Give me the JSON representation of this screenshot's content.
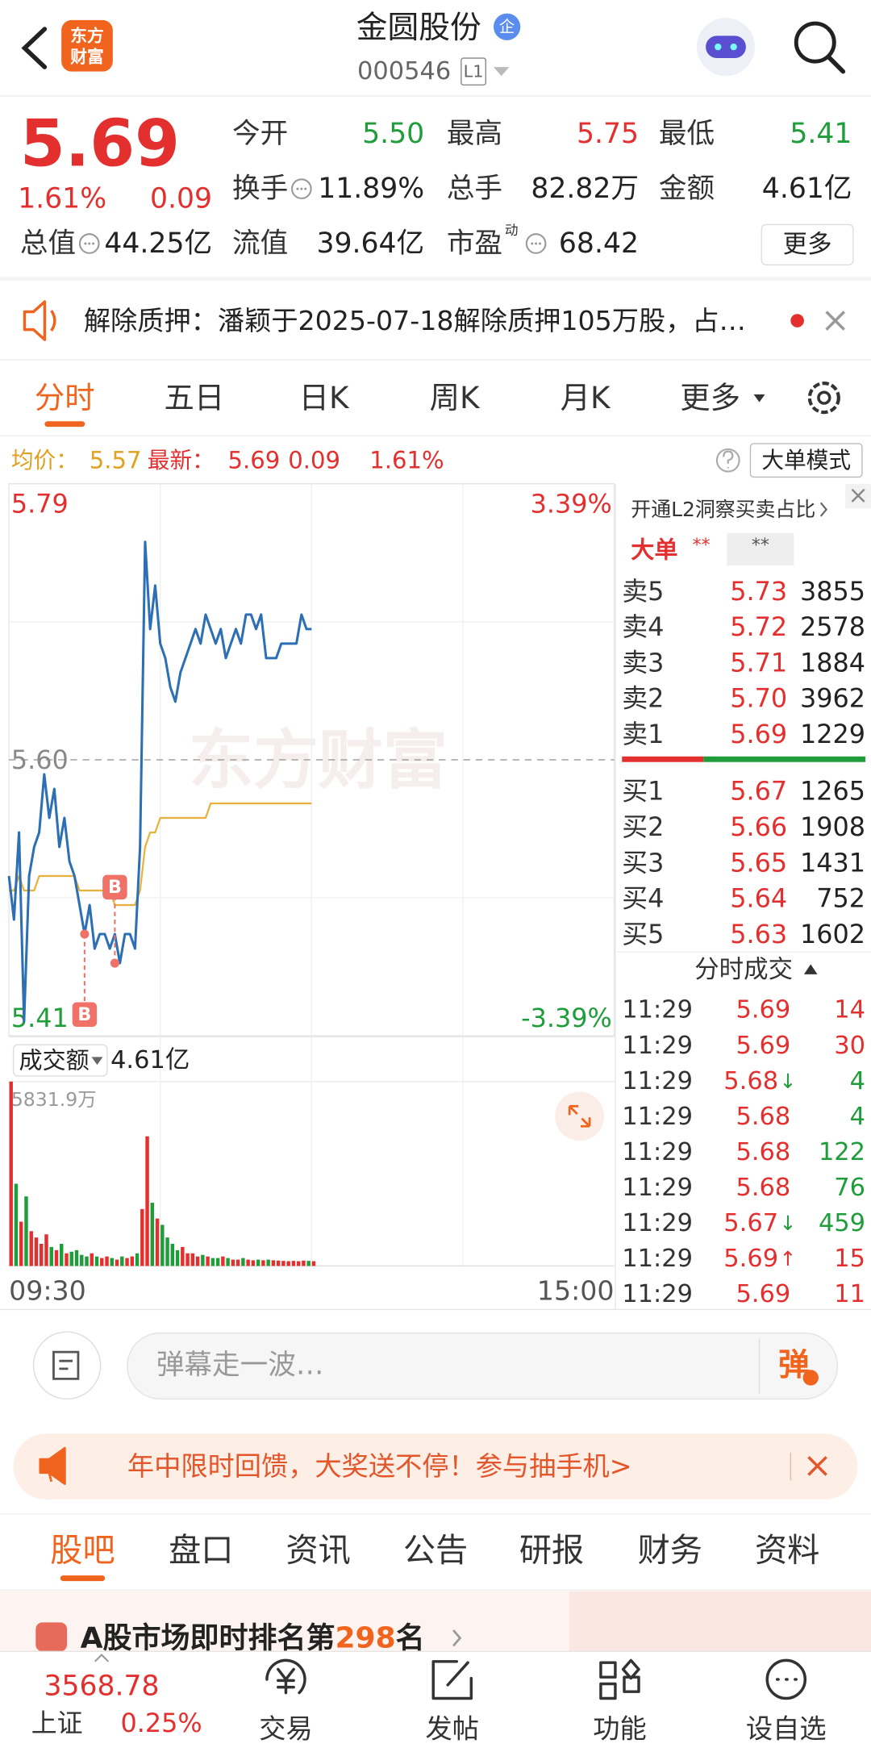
{
  "header": {
    "logo": [
      "东方",
      "财富"
    ],
    "name": "金圆股份",
    "badge": "企",
    "code": "000546",
    "level": "L1"
  },
  "quote": {
    "price": "5.69",
    "change_pct": "1.61%",
    "change": "0.09",
    "fields": [
      {
        "label": "今开",
        "value": "5.50",
        "color": "#1f9d3a"
      },
      {
        "label": "最高",
        "value": "5.75",
        "color": "#e3302f"
      },
      {
        "label": "最低",
        "value": "5.41",
        "color": "#1f9d3a"
      },
      {
        "label": "换手",
        "value": "11.89%",
        "color": "#222222"
      },
      {
        "label": "总手",
        "value": "82.82万",
        "color": "#222222"
      },
      {
        "label": "金额",
        "value": "4.61亿",
        "color": "#222222"
      },
      {
        "label": "总值",
        "value": "44.25亿",
        "color": "#222222"
      },
      {
        "label": "流值",
        "value": "39.64亿",
        "color": "#222222"
      },
      {
        "label": "市盈",
        "superscript": "动",
        "value": "68.42",
        "color": "#222222"
      }
    ],
    "more": "更多"
  },
  "notice": "解除质押：潘颖于2025-07-18解除质押105万股，占…",
  "tabs": {
    "items": [
      "分时",
      "五日",
      "日K",
      "周K",
      "月K",
      "更多"
    ],
    "active": 0
  },
  "info_bar": {
    "avg_label": "均价：",
    "avg": "5.57",
    "latest_label": "最新：",
    "latest": "5.69",
    "change": "0.09",
    "change_pct": "1.61%",
    "mode": "大单模式"
  },
  "chart_data": [
    {
      "type": "line",
      "watermark": "东方财富",
      "grid": true,
      "x": [
        0,
        2,
        4,
        6,
        8,
        10,
        12,
        14,
        16,
        18,
        20,
        22,
        24,
        26,
        28,
        30,
        32,
        34,
        36,
        38,
        40,
        42,
        44,
        46,
        48,
        50,
        52,
        54,
        56,
        58,
        60,
        62,
        64,
        66,
        68,
        70,
        72,
        74,
        76,
        78,
        80,
        82,
        84,
        86,
        88,
        90,
        92,
        94,
        96,
        98,
        100,
        102,
        104,
        106,
        108,
        110,
        112,
        114,
        116,
        118,
        120
      ],
      "xlim": [
        0,
        240
      ],
      "xticks": [
        {
          "value": 0,
          "label": "09:30"
        },
        {
          "value": 240,
          "label": "15:00"
        }
      ],
      "ylim": [
        5.41,
        5.79
      ],
      "yticks": [
        5.79,
        {
          "value": 5.6,
          "label": "5.60"
        },
        5.41
      ],
      "y2lim": [
        -3.39,
        3.39
      ],
      "y2ticks": [
        {
          "value": 3.39,
          "label": "3.39%"
        },
        {
          "value": -3.39,
          "label": "-3.39%"
        }
      ],
      "up_color": "#e3302f",
      "down_color": "#1f9d3a",
      "series": [
        {
          "color": "#2c6fb5",
          "values": [
            5.52,
            5.49,
            5.55,
            5.42,
            5.52,
            5.54,
            5.55,
            5.59,
            5.56,
            5.58,
            5.54,
            5.56,
            5.53,
            5.52,
            5.5,
            5.48,
            5.5,
            5.47,
            5.48,
            5.48,
            5.47,
            5.48,
            5.46,
            5.48,
            5.48,
            5.47,
            5.54,
            5.75,
            5.69,
            5.72,
            5.68,
            5.67,
            5.65,
            5.64,
            5.66,
            5.67,
            5.68,
            5.69,
            5.68,
            5.7,
            5.69,
            5.68,
            5.69,
            5.67,
            5.68,
            5.69,
            5.68,
            5.7,
            5.7,
            5.69,
            5.7,
            5.67,
            5.67,
            5.67,
            5.68,
            5.68,
            5.68,
            5.68,
            5.7,
            5.69,
            5.69
          ]
        },
        {
          "color": "#e8b13b",
          "values": [
            5.51,
            5.51,
            5.52,
            5.51,
            5.51,
            5.51,
            5.52,
            5.52,
            5.52,
            5.52,
            5.52,
            5.52,
            5.52,
            5.52,
            5.51,
            5.51,
            5.51,
            5.51,
            5.51,
            5.51,
            5.51,
            5.5,
            5.5,
            5.5,
            5.5,
            5.5,
            5.51,
            5.54,
            5.55,
            5.55,
            5.56,
            5.56,
            5.56,
            5.56,
            5.56,
            5.56,
            5.56,
            5.56,
            5.56,
            5.56,
            5.57,
            5.57,
            5.57,
            5.57,
            5.57,
            5.57,
            5.57,
            5.57,
            5.57,
            5.57,
            5.57,
            5.57,
            5.57,
            5.57,
            5.57,
            5.57,
            5.57,
            5.57,
            5.57,
            5.57,
            5.57
          ]
        }
      ],
      "markers": [
        {
          "label": "B",
          "x": 30,
          "y": 5.48
        },
        {
          "label": "B",
          "x": 42,
          "y": 5.46
        }
      ]
    },
    {
      "type": "bar",
      "label": "成交额",
      "total": "4.61亿",
      "x": [
        0,
        2,
        4,
        6,
        8,
        10,
        12,
        14,
        16,
        18,
        20,
        22,
        24,
        26,
        28,
        30,
        32,
        34,
        36,
        38,
        40,
        42,
        44,
        46,
        48,
        50,
        52,
        54,
        56,
        58,
        60,
        62,
        64,
        66,
        68,
        70,
        72,
        74,
        76,
        78,
        80,
        82,
        84,
        86,
        88,
        90,
        92,
        94,
        96,
        98,
        100,
        102,
        104,
        106,
        108,
        110,
        112,
        114,
        116,
        118,
        120
      ],
      "xlim": [
        0,
        240
      ],
      "ylim": [
        0,
        5831.9
      ],
      "yticks": [
        {
          "value": 5831.9,
          "label": "5831.9万"
        }
      ],
      "values": [
        5831.9,
        2600,
        1400,
        2200,
        1100,
        900,
        700,
        1000,
        600,
        500,
        700,
        400,
        450,
        500,
        350,
        300,
        400,
        300,
        250,
        300,
        250,
        200,
        300,
        250,
        300,
        400,
        1800,
        4100,
        2000,
        1500,
        1300,
        900,
        700,
        500,
        600,
        400,
        400,
        300,
        350,
        300,
        250,
        250,
        300,
        250,
        200,
        200,
        250,
        200,
        180,
        200,
        180,
        200,
        180,
        170,
        160,
        150,
        160,
        150,
        170,
        160,
        150
      ]
    }
  ],
  "order_book": {
    "promo": "开通L2洞察买卖占比",
    "big_order": {
      "label": "大单",
      "values": [
        "**",
        "**"
      ]
    },
    "asks": [
      {
        "label": "卖5",
        "price": "5.73",
        "volume": "3855"
      },
      {
        "label": "卖4",
        "price": "5.72",
        "volume": "2578"
      },
      {
        "label": "卖3",
        "price": "5.71",
        "volume": "1884"
      },
      {
        "label": "卖2",
        "price": "5.70",
        "volume": "3962"
      },
      {
        "label": "卖1",
        "price": "5.69",
        "volume": "1229"
      }
    ],
    "bids": [
      {
        "label": "买1",
        "price": "5.67",
        "volume": "1265"
      },
      {
        "label": "买2",
        "price": "5.66",
        "volume": "1908"
      },
      {
        "label": "买3",
        "price": "5.65",
        "volume": "1431"
      },
      {
        "label": "买4",
        "price": "5.64",
        "volume": "752"
      },
      {
        "label": "买5",
        "price": "5.63",
        "volume": "1602"
      }
    ]
  },
  "trades": {
    "title": "分时成交",
    "rows": [
      {
        "time": "11:29",
        "price": "5.69",
        "volume": "14",
        "color": "#e3302f"
      },
      {
        "time": "11:29",
        "price": "5.69",
        "volume": "30",
        "color": "#e3302f"
      },
      {
        "time": "11:29",
        "price": "5.68",
        "arrow": "↓",
        "arrow_color": "#1f9d3a",
        "volume": "4",
        "color": "#1f9d3a"
      },
      {
        "time": "11:29",
        "price": "5.68",
        "volume": "4",
        "color": "#1f9d3a"
      },
      {
        "time": "11:29",
        "price": "5.68",
        "volume": "122",
        "color": "#1f9d3a"
      },
      {
        "time": "11:29",
        "price": "5.68",
        "volume": "76",
        "color": "#1f9d3a"
      },
      {
        "time": "11:29",
        "price": "5.67",
        "arrow": "↓",
        "arrow_color": "#1f9d3a",
        "volume": "459",
        "color": "#1f9d3a"
      },
      {
        "time": "11:29",
        "price": "5.69",
        "arrow": "↑",
        "arrow_color": "#e3302f",
        "volume": "15",
        "color": "#e3302f"
      },
      {
        "time": "11:29",
        "price": "5.69",
        "volume": "11",
        "color": "#e3302f"
      }
    ]
  },
  "comment": {
    "placeholder": "弹幕走一波…",
    "button": "弹"
  },
  "promo": "年中限时回馈，大奖送不停！参与抽手机>",
  "section_tabs": {
    "items": [
      "股吧",
      "盘口",
      "资讯",
      "公告",
      "研报",
      "财务",
      "资料"
    ],
    "active": 0
  },
  "rank": {
    "prefix": "A股市场即时排名第",
    "rank": "298",
    "suffix": "名"
  },
  "bottom_nav": {
    "index": {
      "value": "3568.78",
      "name": "上证",
      "change_pct": "0.25%"
    },
    "items": [
      "交易",
      "发帖",
      "功能",
      "设自选"
    ]
  }
}
